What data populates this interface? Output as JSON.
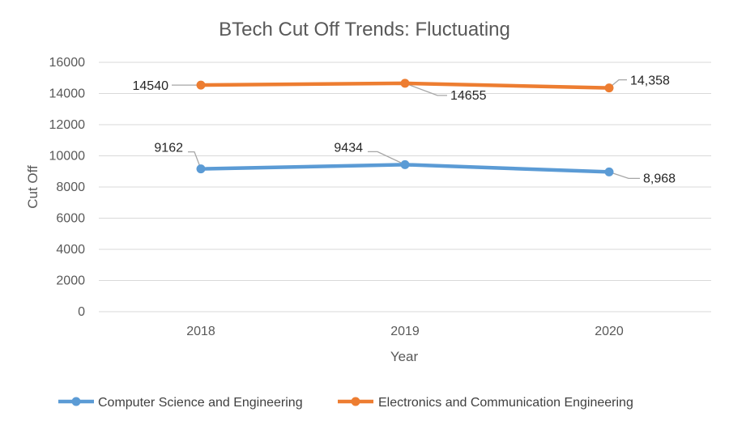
{
  "chart_data": {
    "type": "line",
    "title": "BTech Cut Off Trends: Fluctuating",
    "xlabel": "Year",
    "ylabel": "Cut Off",
    "categories": [
      "2018",
      "2019",
      "2020"
    ],
    "ylim": [
      0,
      16000
    ],
    "yticks": [
      0,
      2000,
      4000,
      6000,
      8000,
      10000,
      12000,
      14000,
      16000
    ],
    "grid": true,
    "legend_position": "bottom",
    "series": [
      {
        "name": "Computer Science and Engineering",
        "color": "#5B9BD5",
        "values": [
          9162,
          9434,
          8968
        ],
        "labels": [
          "9162",
          "9434",
          "8,968"
        ]
      },
      {
        "name": "Electronics and Communication Engineering",
        "color": "#ED7D31",
        "values": [
          14540,
          14655,
          14358
        ],
        "labels": [
          "14540",
          "14655",
          "14,358"
        ]
      }
    ]
  }
}
